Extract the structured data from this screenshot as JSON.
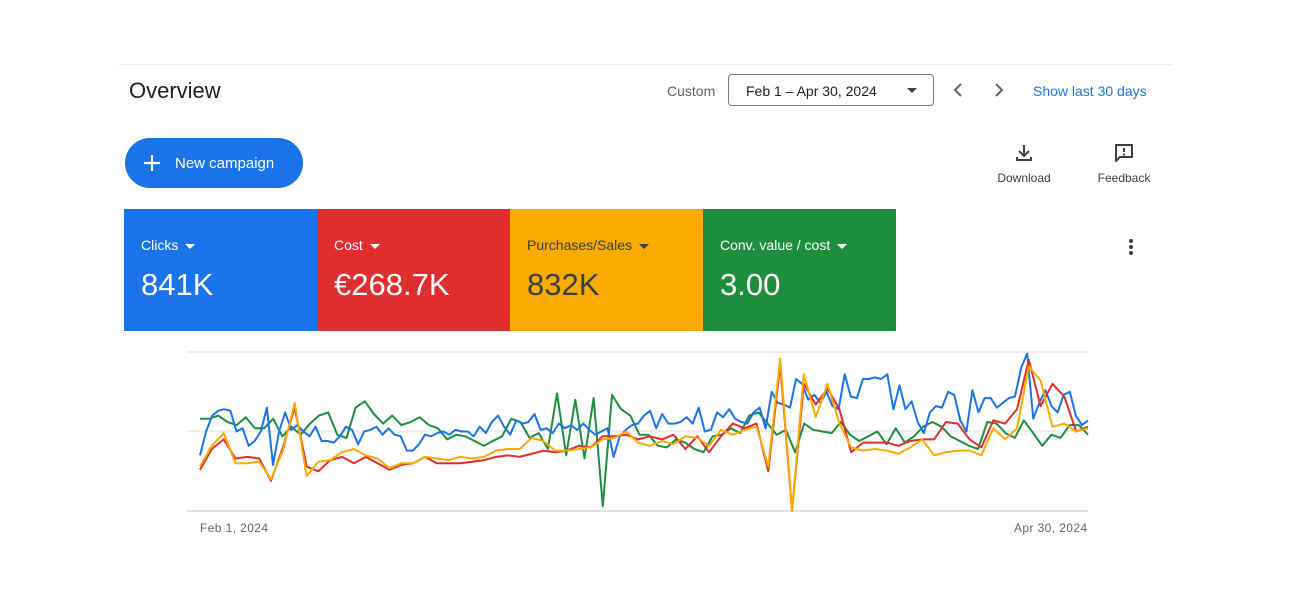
{
  "header": {
    "title": "Overview",
    "custom_label": "Custom",
    "date_range": "Feb 1 – Apr 30, 2024",
    "show_last_label": "Show last 30 days"
  },
  "actions": {
    "new_campaign_label": "New campaign",
    "download_label": "Download",
    "feedback_label": "Feedback"
  },
  "metrics": [
    {
      "label": "Clicks",
      "value": "841K",
      "color": "#1a73e8",
      "text_color": "#ffffff"
    },
    {
      "label": "Cost",
      "value": "€268.7K",
      "color": "#e02e2e",
      "text_color": "#ffffff"
    },
    {
      "label": "Purchases/Sales",
      "value": "832K",
      "color": "#f9ab00",
      "text_color": "#3c4043"
    },
    {
      "label": "Conv. value / cost",
      "value": "3.00",
      "color": "#1e8e3e",
      "text_color": "#ffffff"
    }
  ],
  "chart_data": {
    "type": "line",
    "x_start": "Feb 1, 2024",
    "x_end": "Apr 30, 2024",
    "xlabel": "",
    "ylabel": "",
    "y_scale": "relative (no tick labels)",
    "grid": true,
    "series": [
      {
        "name": "Clicks",
        "color": "#1a73e8",
        "values": [
          0.35,
          0.5,
          0.6,
          0.63,
          0.64,
          0.63,
          0.5,
          0.52,
          0.41,
          0.44,
          0.5,
          0.65,
          0.29,
          0.5,
          0.62,
          0.51,
          0.54,
          0.5,
          0.47,
          0.53,
          0.44,
          0.44,
          0.43,
          0.47,
          0.53,
          0.51,
          0.42,
          0.5,
          0.51,
          0.53,
          0.48,
          0.52,
          0.48,
          0.47,
          0.38,
          0.38,
          0.42,
          0.48,
          0.47,
          0.49,
          0.5,
          0.48,
          0.51,
          0.5,
          0.5,
          0.47,
          0.53,
          0.49,
          0.56,
          0.6,
          0.53,
          0.48,
          0.57,
          0.55,
          0.56,
          0.61,
          0.51,
          0.52,
          0.49,
          0.55,
          0.52,
          0.54,
          0.51,
          0.55,
          0.51,
          0.48,
          0.5,
          0.52,
          0.34,
          0.47,
          0.51,
          0.54,
          0.55,
          0.6,
          0.63,
          0.52,
          0.61,
          0.55,
          0.55,
          0.56,
          0.59,
          0.55,
          0.65,
          0.5,
          0.51,
          0.62,
          0.59,
          0.64,
          0.58,
          0.56,
          0.55,
          0.62,
          0.65,
          0.52,
          0.75,
          0.68,
          0.67,
          0.65,
          0.83,
          0.8,
          0.7,
          0.73,
          0.68,
          0.75,
          0.66,
          0.64,
          0.86,
          0.72,
          0.71,
          0.83,
          0.83,
          0.84,
          0.83,
          0.86,
          0.64,
          0.79,
          0.64,
          0.69,
          0.56,
          0.49,
          0.62,
          0.66,
          0.65,
          0.75,
          0.73,
          0.57,
          0.5,
          0.76,
          0.62,
          0.71,
          0.71,
          0.65,
          0.68,
          0.71,
          0.72,
          0.9,
          0.99,
          0.58,
          0.68,
          0.76,
          0.66,
          0.62,
          0.73,
          0.75,
          0.6,
          0.54,
          0.57
        ]
      },
      {
        "name": "Cost",
        "color": "#e02e2e",
        "values": [
          0.26,
          0.39,
          0.45,
          0.33,
          0.34,
          0.33,
          0.19,
          0.4,
          0.65,
          0.28,
          0.25,
          0.32,
          0.34,
          0.3,
          0.34,
          0.3,
          0.26,
          0.29,
          0.3,
          0.34,
          0.3,
          0.3,
          0.3,
          0.31,
          0.32,
          0.34,
          0.35,
          0.34,
          0.36,
          0.38,
          0.37,
          0.38,
          0.41,
          0.4,
          0.47,
          0.47,
          0.48,
          0.45,
          0.47,
          0.45,
          0.48,
          0.39,
          0.47,
          0.37,
          0.47,
          0.55,
          0.52,
          0.55,
          0.25,
          0.92,
          0.0,
          0.8,
          0.67,
          0.77,
          0.64,
          0.37,
          0.43,
          0.43,
          0.43,
          0.41,
          0.44,
          0.45,
          0.45,
          0.56,
          0.55,
          0.45,
          0.4,
          0.57,
          0.55,
          0.64,
          0.95,
          0.66,
          0.8,
          0.72,
          0.5,
          0.53
        ]
      },
      {
        "name": "Purchases/Sales",
        "color": "#f9ab00",
        "values": [
          0.28,
          0.41,
          0.49,
          0.3,
          0.3,
          0.31,
          0.2,
          0.38,
          0.68,
          0.22,
          0.31,
          0.32,
          0.37,
          0.39,
          0.35,
          0.33,
          0.27,
          0.3,
          0.3,
          0.34,
          0.33,
          0.32,
          0.34,
          0.33,
          0.34,
          0.38,
          0.39,
          0.39,
          0.46,
          0.44,
          0.38,
          0.38,
          0.39,
          0.4,
          0.45,
          0.46,
          0.5,
          0.43,
          0.41,
          0.44,
          0.42,
          0.47,
          0.46,
          0.41,
          0.51,
          0.48,
          0.51,
          0.53,
          0.28,
          0.96,
          0.0,
          0.86,
          0.59,
          0.8,
          0.55,
          0.4,
          0.38,
          0.39,
          0.38,
          0.36,
          0.4,
          0.45,
          0.35,
          0.37,
          0.38,
          0.38,
          0.35,
          0.52,
          0.45,
          0.52,
          0.91,
          0.82,
          0.53,
          0.55,
          0.5,
          0.52
        ]
      },
      {
        "name": "Conv. value / cost",
        "color": "#1e8e3e",
        "values": [
          0.58,
          0.58,
          0.6,
          0.56,
          0.54,
          0.59,
          0.52,
          0.52,
          0.58,
          0.47,
          0.53,
          0.48,
          0.55,
          0.6,
          0.62,
          0.48,
          0.46,
          0.65,
          0.69,
          0.61,
          0.55,
          0.6,
          0.54,
          0.56,
          0.59,
          0.54,
          0.52,
          0.45,
          0.48,
          0.47,
          0.44,
          0.41,
          0.44,
          0.47,
          0.58,
          0.56,
          0.46,
          0.49,
          0.39,
          0.74,
          0.35,
          0.7,
          0.33,
          0.71,
          0.03,
          0.73,
          0.64,
          0.6,
          0.48,
          0.48,
          0.41,
          0.4,
          0.45,
          0.43,
          0.39,
          0.37,
          0.47,
          0.48,
          0.52,
          0.49,
          0.6,
          0.62,
          0.55,
          0.48,
          0.51,
          0.37,
          0.55,
          0.51,
          0.5,
          0.49,
          0.56,
          0.48,
          0.44,
          0.47,
          0.5,
          0.42,
          0.52,
          0.43,
          0.47,
          0.53,
          0.56,
          0.53,
          0.47,
          0.44,
          0.41,
          0.39,
          0.56,
          0.55,
          0.49,
          0.46,
          0.57,
          0.49,
          0.41,
          0.48,
          0.46,
          0.54,
          0.54,
          0.48
        ]
      }
    ]
  }
}
